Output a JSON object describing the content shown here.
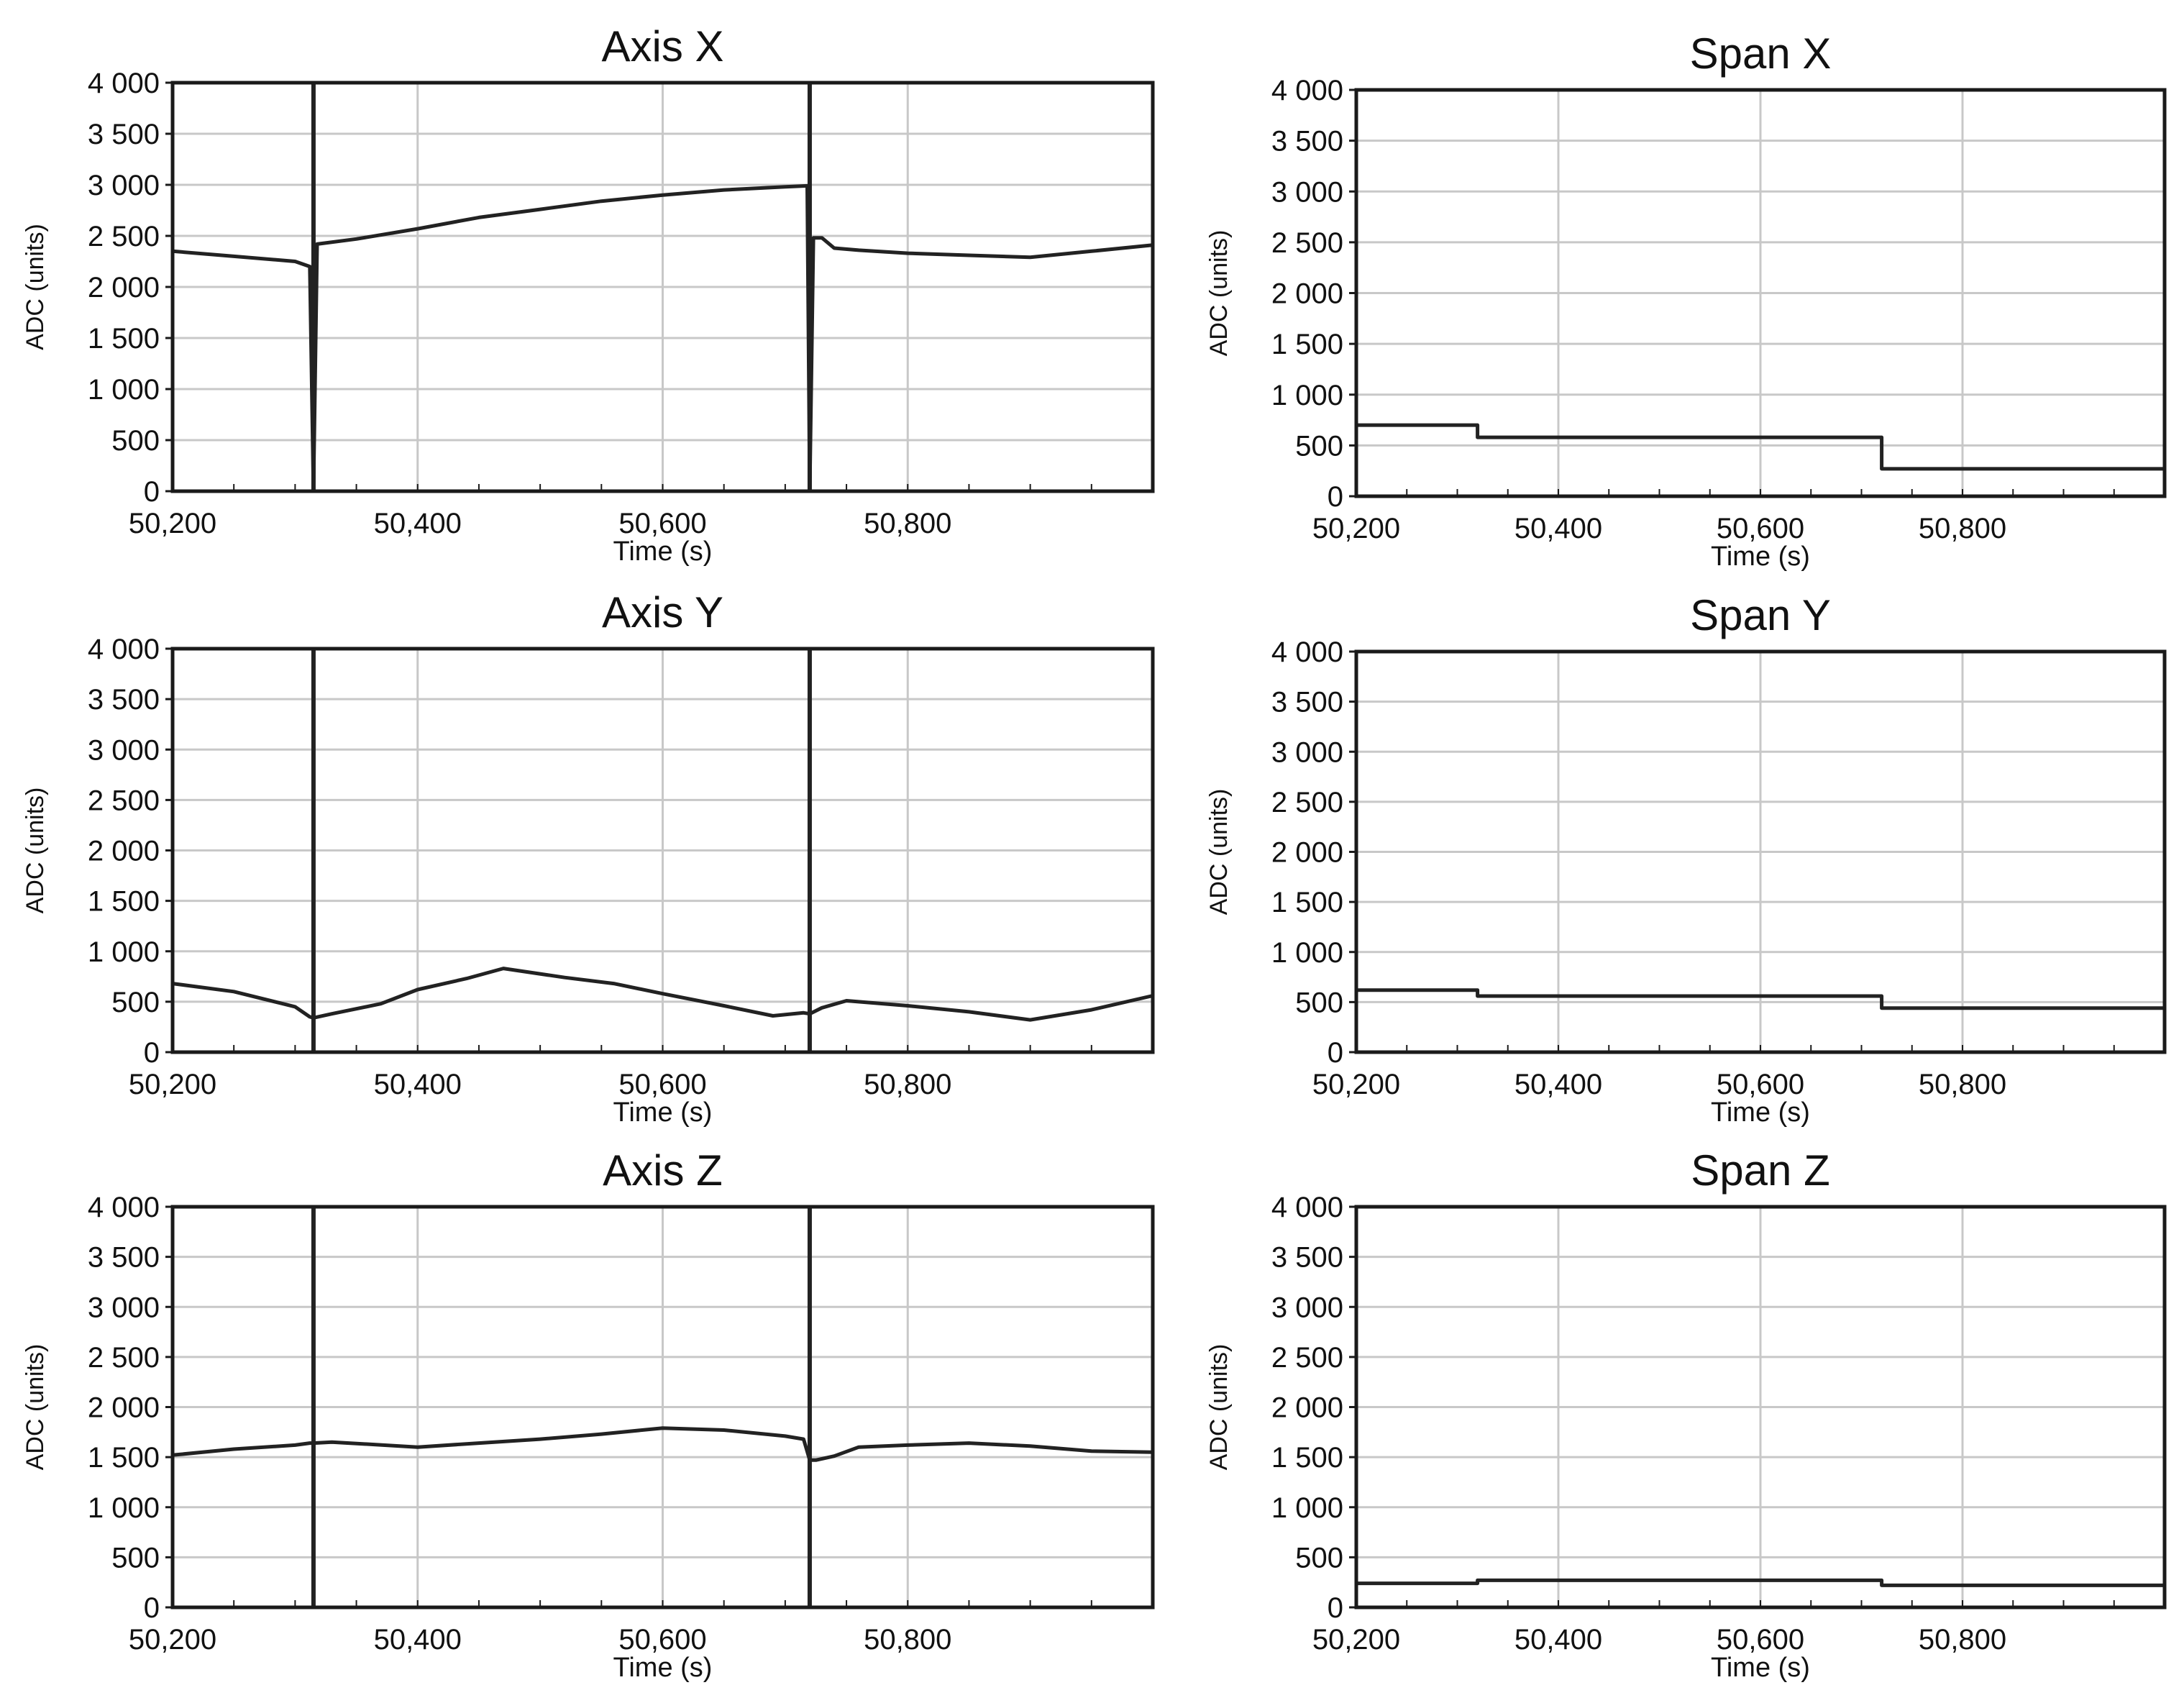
{
  "figure": {
    "description_colors": {
      "line": "#222222",
      "grid": "#c8c8c8",
      "frame": "#1a1a1a",
      "background": "#ffffff"
    }
  },
  "chart_data": [
    {
      "id": "axis-x",
      "type": "line",
      "title": "Axis X",
      "xlabel": "Time (s)",
      "ylabel": "ADC (units)",
      "xlim": [
        50200,
        51000
      ],
      "ylim": [
        0,
        4000
      ],
      "x_ticks": [
        50200,
        50400,
        50600,
        50800
      ],
      "x_tick_labels": [
        "50,200",
        "50,400",
        "50,600",
        "50,800"
      ],
      "y_ticks": [
        0,
        500,
        1000,
        1500,
        2000,
        2500,
        3000,
        3500,
        4000
      ],
      "y_tick_labels": [
        "0",
        "500",
        "1 000",
        "1 500",
        "2 000",
        "2 500",
        "3 000",
        "3 500",
        "4 000"
      ],
      "grid": true,
      "spikes": [
        50315,
        50720
      ],
      "series": [
        {
          "name": "Axis X",
          "x": [
            50200,
            50250,
            50300,
            50312,
            50315,
            50318,
            50350,
            50400,
            50450,
            50500,
            50550,
            50600,
            50650,
            50700,
            50718,
            50720,
            50723,
            50730,
            50740,
            50760,
            50800,
            50850,
            50900,
            50950,
            51000
          ],
          "y": [
            2350,
            2300,
            2250,
            2200,
            0,
            2420,
            2470,
            2570,
            2680,
            2760,
            2840,
            2900,
            2950,
            2980,
            2990,
            0,
            2480,
            2480,
            2380,
            2360,
            2330,
            2310,
            2290,
            2350,
            2410
          ]
        }
      ]
    },
    {
      "id": "span-x",
      "type": "line",
      "title": "Span X",
      "xlabel": "Time (s)",
      "ylabel": "ADC (units)",
      "xlim": [
        50200,
        51000
      ],
      "ylim": [
        0,
        4000
      ],
      "x_ticks": [
        50200,
        50400,
        50600,
        50800
      ],
      "x_tick_labels": [
        "50,200",
        "50,400",
        "50,600",
        "50,800"
      ],
      "y_ticks": [
        0,
        500,
        1000,
        1500,
        2000,
        2500,
        3000,
        3500,
        4000
      ],
      "y_tick_labels": [
        "0",
        "500",
        "1 000",
        "1 500",
        "2 000",
        "2 500",
        "3 000",
        "3 500",
        "4 000"
      ],
      "grid": true,
      "spikes": [],
      "series": [
        {
          "name": "Span X",
          "x": [
            50200,
            50320,
            50320,
            50720,
            50720,
            51000
          ],
          "y": [
            700,
            700,
            580,
            580,
            270,
            270
          ]
        }
      ]
    },
    {
      "id": "axis-y",
      "type": "line",
      "title": "Axis Y",
      "xlabel": "Time (s)",
      "ylabel": "ADC (units)",
      "xlim": [
        50200,
        51000
      ],
      "ylim": [
        0,
        4000
      ],
      "x_ticks": [
        50200,
        50400,
        50600,
        50800
      ],
      "x_tick_labels": [
        "50,200",
        "50,400",
        "50,600",
        "50,800"
      ],
      "y_ticks": [
        0,
        500,
        1000,
        1500,
        2000,
        2500,
        3000,
        3500,
        4000
      ],
      "y_tick_labels": [
        "0",
        "500",
        "1 000",
        "1 500",
        "2 000",
        "2 500",
        "3 000",
        "3 500",
        "4 000"
      ],
      "grid": true,
      "spikes": [
        50315,
        50720
      ],
      "series": [
        {
          "name": "Axis Y",
          "x": [
            50200,
            50250,
            50300,
            50312,
            50315,
            50330,
            50370,
            50400,
            50440,
            50470,
            50520,
            50560,
            50600,
            50650,
            50690,
            50715,
            50720,
            50730,
            50750,
            50800,
            50850,
            50900,
            50950,
            51000
          ],
          "y": [
            680,
            600,
            450,
            350,
            340,
            380,
            480,
            620,
            730,
            830,
            740,
            680,
            580,
            460,
            360,
            390,
            380,
            440,
            510,
            460,
            400,
            320,
            420,
            560
          ]
        }
      ]
    },
    {
      "id": "span-y",
      "type": "line",
      "title": "Span Y",
      "xlabel": "Time (s)",
      "ylabel": "ADC (units)",
      "xlim": [
        50200,
        51000
      ],
      "ylim": [
        0,
        4000
      ],
      "x_ticks": [
        50200,
        50400,
        50600,
        50800
      ],
      "x_tick_labels": [
        "50,200",
        "50,400",
        "50,600",
        "50,800"
      ],
      "y_ticks": [
        0,
        500,
        1000,
        1500,
        2000,
        2500,
        3000,
        3500,
        4000
      ],
      "y_tick_labels": [
        "0",
        "500",
        "1 000",
        "1 500",
        "2 000",
        "2 500",
        "3 000",
        "3 500",
        "4 000"
      ],
      "grid": true,
      "spikes": [],
      "series": [
        {
          "name": "Span Y",
          "x": [
            50200,
            50320,
            50320,
            50720,
            50720,
            51000
          ],
          "y": [
            620,
            620,
            560,
            560,
            440,
            440
          ]
        }
      ]
    },
    {
      "id": "axis-z",
      "type": "line",
      "title": "Axis Z",
      "xlabel": "Time (s)",
      "ylabel": "ADC (units)",
      "xlim": [
        50200,
        51000
      ],
      "ylim": [
        0,
        4000
      ],
      "x_ticks": [
        50200,
        50400,
        50600,
        50800
      ],
      "x_tick_labels": [
        "50,200",
        "50,400",
        "50,600",
        "50,800"
      ],
      "y_ticks": [
        0,
        500,
        1000,
        1500,
        2000,
        2500,
        3000,
        3500,
        4000
      ],
      "y_tick_labels": [
        "0",
        "500",
        "1 000",
        "1 500",
        "2 000",
        "2 500",
        "3 000",
        "3 500",
        "4 000"
      ],
      "grid": true,
      "spikes": [
        50315,
        50720
      ],
      "series": [
        {
          "name": "Axis Z",
          "x": [
            50200,
            50250,
            50300,
            50312,
            50315,
            50330,
            50400,
            50450,
            50500,
            50550,
            50600,
            50650,
            50700,
            50715,
            50720,
            50725,
            50740,
            50760,
            50800,
            50850,
            50900,
            50950,
            51000
          ],
          "y": [
            1520,
            1580,
            1620,
            1640,
            1640,
            1650,
            1600,
            1640,
            1680,
            1730,
            1790,
            1770,
            1710,
            1680,
            1470,
            1470,
            1510,
            1600,
            1620,
            1640,
            1610,
            1560,
            1550
          ]
        }
      ]
    },
    {
      "id": "span-z",
      "type": "line",
      "title": "Span Z",
      "xlabel": "Time (s)",
      "ylabel": "ADC (units)",
      "xlim": [
        50200,
        51000
      ],
      "ylim": [
        0,
        4000
      ],
      "x_ticks": [
        50200,
        50400,
        50600,
        50800
      ],
      "x_tick_labels": [
        "50,200",
        "50,400",
        "50,600",
        "50,800"
      ],
      "y_ticks": [
        0,
        500,
        1000,
        1500,
        2000,
        2500,
        3000,
        3500,
        4000
      ],
      "y_tick_labels": [
        "0",
        "500",
        "1 000",
        "1 500",
        "2 000",
        "2 500",
        "3 000",
        "3 500",
        "4 000"
      ],
      "grid": true,
      "spikes": [],
      "series": [
        {
          "name": "Span Z",
          "x": [
            50200,
            50320,
            50320,
            50720,
            50720,
            51000
          ],
          "y": [
            240,
            240,
            270,
            270,
            220,
            220
          ]
        }
      ]
    }
  ]
}
